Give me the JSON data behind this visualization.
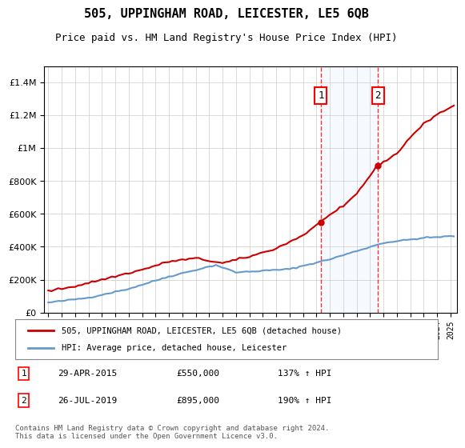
{
  "title": "505, UPPINGHAM ROAD, LEICESTER, LE5 6QB",
  "subtitle": "Price paid vs. HM Land Registry's House Price Index (HPI)",
  "legend_label_red": "505, UPPINGHAM ROAD, LEICESTER, LE5 6QB (detached house)",
  "legend_label_blue": "HPI: Average price, detached house, Leicester",
  "sale1_date": "29-APR-2015",
  "sale1_price": "£550,000",
  "sale1_hpi": "137% ↑ HPI",
  "sale1_year": 2015.33,
  "sale1_value": 550000,
  "sale2_date": "26-JUL-2019",
  "sale2_price": "£895,000",
  "sale2_hpi": "190% ↑ HPI",
  "sale2_year": 2019.58,
  "sale2_value": 895000,
  "footnote": "Contains HM Land Registry data © Crown copyright and database right 2024.\nThis data is licensed under the Open Government Licence v3.0.",
  "background_color": "#ffffff",
  "plot_bg_color": "#ffffff",
  "grid_color": "#cccccc",
  "red_color": "#cc0000",
  "blue_color": "#6699cc",
  "highlight_fill": "#ddeeff",
  "ylim": [
    0,
    1500000
  ],
  "xlim_start": 1995,
  "xlim_end": 2025.5
}
